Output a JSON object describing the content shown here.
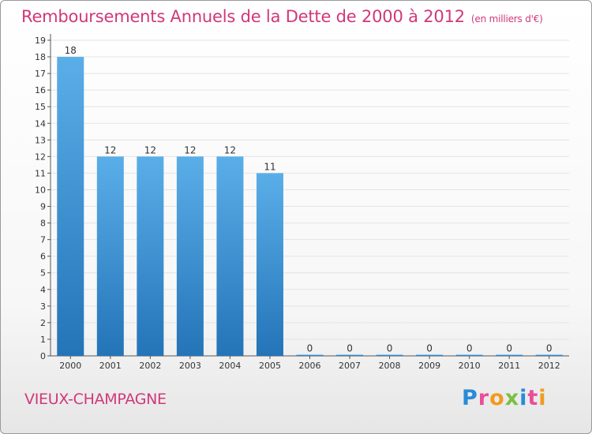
{
  "title": "Remboursements Annuels de la Dette de 2000 à 2012",
  "unit": "(en milliers d'€)",
  "commune": "VIEUX-CHAMPAGNE",
  "brand": {
    "letters": [
      "P",
      "r",
      "o",
      "x",
      "i",
      "t",
      "i"
    ],
    "colors": [
      "#2a8ad8",
      "#e94e9a",
      "#f29a1f",
      "#7ac043",
      "#2a8ad8",
      "#e94e9a",
      "#f29a1f"
    ]
  },
  "colors": {
    "bar_top": "#5aaee8",
    "bar_bottom": "#2474b8",
    "accent": "#d0387a"
  },
  "chart_data": {
    "type": "bar",
    "categories": [
      "2000",
      "2001",
      "2002",
      "2003",
      "2004",
      "2005",
      "2006",
      "2007",
      "2008",
      "2009",
      "2010",
      "2011",
      "2012"
    ],
    "values": [
      18,
      12,
      12,
      12,
      12,
      11,
      0,
      0,
      0,
      0,
      0,
      0,
      0
    ],
    "data_labels": [
      "18",
      "12",
      "12",
      "12",
      "12",
      "11",
      "0",
      "0",
      "0",
      "0",
      "0",
      "0",
      "0"
    ],
    "yticks": [
      "0",
      "1",
      "2",
      "3",
      "4",
      "5",
      "6",
      "7",
      "8",
      "9",
      "10",
      "11",
      "12",
      "13",
      "14",
      "15",
      "16",
      "17",
      "18",
      "19"
    ],
    "ylim": [
      0,
      19
    ],
    "grid": true,
    "title": "Remboursements Annuels de la Dette de 2000 à 2012",
    "xlabel": "",
    "ylabel": ""
  }
}
